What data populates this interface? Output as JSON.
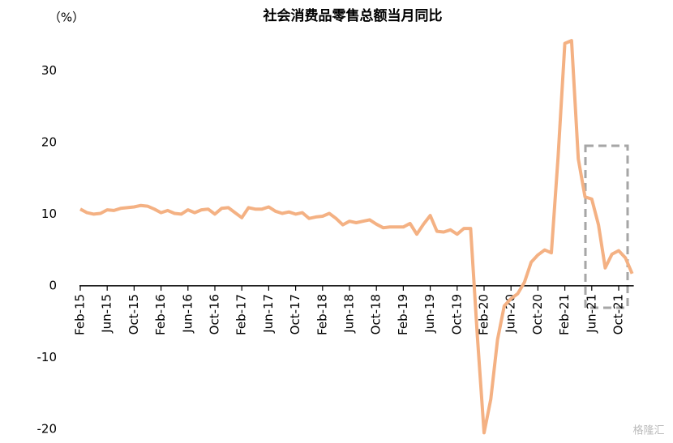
{
  "chart_data": {
    "type": "line",
    "title": "社会消费品零售总额当月同比",
    "y_label": "（%）",
    "watermark": "格隆汇",
    "categories": [
      "Feb-15",
      null,
      null,
      null,
      "Jun-15",
      null,
      null,
      null,
      "Oct-15",
      null,
      null,
      null,
      "Feb-16",
      null,
      null,
      null,
      "Jun-16",
      null,
      null,
      null,
      "Oct-16",
      null,
      null,
      null,
      "Feb-17",
      null,
      null,
      null,
      "Jun-17",
      null,
      null,
      null,
      "Oct-17",
      null,
      null,
      null,
      "Feb-18",
      null,
      null,
      null,
      "Jun-18",
      null,
      null,
      null,
      "Oct-18",
      null,
      null,
      null,
      "Feb-19",
      null,
      null,
      null,
      "Jun-19",
      null,
      null,
      null,
      "Oct-19",
      null,
      null,
      null,
      "Feb-20",
      null,
      null,
      null,
      "Jun-20",
      null,
      null,
      null,
      "Oct-20",
      null,
      null,
      null,
      "Feb-21",
      null,
      null,
      null,
      "Jun-21",
      null,
      null,
      null,
      "Oct-21",
      null,
      null
    ],
    "values": [
      10.7,
      10.2,
      10.0,
      10.1,
      10.6,
      10.5,
      10.8,
      10.9,
      11.0,
      11.2,
      11.1,
      10.7,
      10.2,
      10.5,
      10.1,
      10.0,
      10.6,
      10.2,
      10.6,
      10.7,
      10.0,
      10.8,
      10.9,
      10.2,
      9.5,
      10.9,
      10.7,
      10.7,
      11.0,
      10.4,
      10.1,
      10.3,
      10.0,
      10.2,
      9.4,
      9.6,
      9.7,
      10.1,
      9.4,
      8.5,
      9.0,
      8.8,
      9.0,
      9.2,
      8.6,
      8.1,
      8.2,
      8.2,
      8.2,
      8.7,
      7.2,
      8.6,
      9.8,
      7.6,
      7.5,
      7.8,
      7.2,
      8.0,
      8.0,
      -7.0,
      -20.5,
      -15.8,
      -7.5,
      -2.8,
      -1.8,
      -1.1,
      0.5,
      3.3,
      4.3,
      5.0,
      4.6,
      18.0,
      33.8,
      34.2,
      17.7,
      12.4,
      12.1,
      8.5,
      2.5,
      4.4,
      4.9,
      3.9,
      1.7
    ],
    "color": "#f4b183",
    "ylim": [
      -20,
      35
    ],
    "yticks": [
      -20,
      -10,
      0,
      10,
      20,
      30
    ],
    "grid": false
  }
}
